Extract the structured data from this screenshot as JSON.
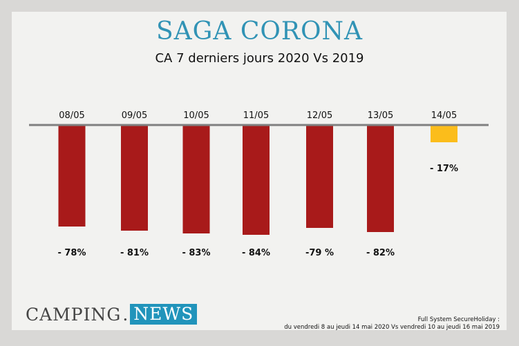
{
  "header": {
    "title": "SAGA CORONA",
    "subtitle": "CA 7 derniers jours 2020 Vs 2019"
  },
  "logo": {
    "part1": "CAMPING",
    "dot": ".",
    "part2": "NEWS"
  },
  "source": {
    "line1": "Full System SecureHoliday :",
    "line2": "du vendredi 8 au jeudi 14 mai 2020 Vs vendredi 10 au jeudi 16 mai 2019"
  },
  "colors": {
    "bar_main": "#a81a1a",
    "bar_highlight": "#fbbd1b",
    "axis": "#808080",
    "title": "#3193b5"
  },
  "chart_data": {
    "type": "bar",
    "title": "SAGA CORONA",
    "subtitle": "CA 7 derniers jours 2020 Vs 2019",
    "xlabel": "",
    "ylabel": "",
    "categories": [
      "08/05",
      "09/05",
      "10/05",
      "11/05",
      "12/05",
      "13/05",
      "14/05"
    ],
    "values": [
      -78,
      -81,
      -83,
      -84,
      -79,
      -82,
      -17
    ],
    "data_labels": [
      "- 78%",
      "- 81%",
      "- 83%",
      "- 84%",
      "-79 %",
      "- 82%",
      "- 17%"
    ],
    "highlight_index": 6,
    "ylim": [
      -100,
      0
    ],
    "grid": false,
    "legend": "none"
  }
}
